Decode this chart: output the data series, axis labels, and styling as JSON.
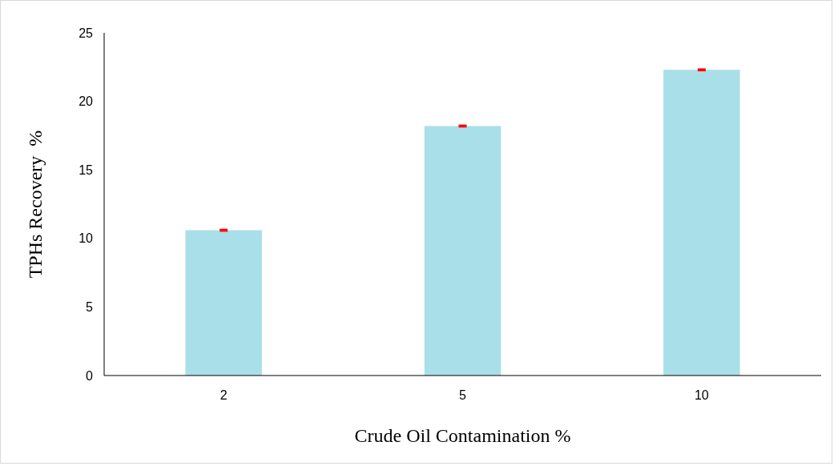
{
  "chart_data": {
    "type": "bar",
    "xlabel": "Crude Oil Contamination %",
    "ylabel": "TPHs Recovery  %",
    "categories": [
      "2",
      "5",
      "10"
    ],
    "values": [
      10.6,
      18.2,
      22.3
    ],
    "errors": [
      0.05,
      0.05,
      0.05
    ],
    "color": "#a9dfe8",
    "ylim": [
      0,
      25
    ],
    "yticks": [
      0,
      5,
      10,
      15,
      20,
      25
    ],
    "grid": false
  }
}
